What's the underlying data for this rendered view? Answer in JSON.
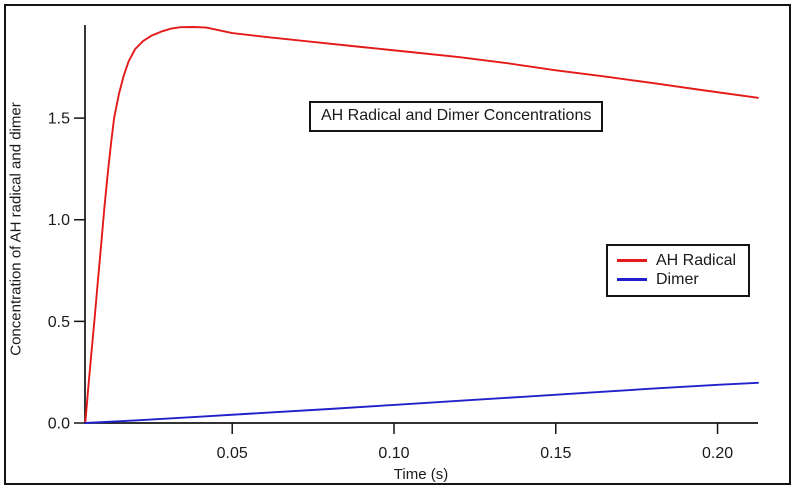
{
  "window": {
    "background": "#ffffff",
    "frame_color": "#141414"
  },
  "chart_data": {
    "type": "line",
    "title": "AH Radical and Dimer Concentrations",
    "xlabel": "Time (s)",
    "ylabel": "Concentration of AH radical and dimer",
    "xlim": [
      0.0045,
      0.2125
    ],
    "ylim": [
      0,
      1.958
    ],
    "xtick_values": [
      0.05,
      0.1,
      0.15,
      0.2
    ],
    "xtick_labels": [
      "0.05",
      "0.10",
      "0.15",
      "0.20"
    ],
    "ytick_values": [
      0.0,
      0.5,
      1.0,
      1.5
    ],
    "ytick_labels": [
      "0.0",
      "0.5",
      "1.0",
      "1.5"
    ],
    "grid": false,
    "legend_position": "middle-right",
    "axis_color": "#141414",
    "text_color": "#1a1a1a",
    "series": [
      {
        "name": "AH Radical",
        "color": "#e41a1a",
        "x": [
          0.0046,
          0.0055,
          0.0065,
          0.0075,
          0.0085,
          0.0095,
          0.0105,
          0.0115,
          0.0125,
          0.0135,
          0.015,
          0.0165,
          0.018,
          0.02,
          0.0225,
          0.025,
          0.028,
          0.031,
          0.034,
          0.038,
          0.042,
          0.05,
          0.06,
          0.075,
          0.09,
          0.105,
          0.12,
          0.135,
          0.15,
          0.165,
          0.18,
          0.195,
          0.2125
        ],
        "y": [
          0.0,
          0.17,
          0.35,
          0.52,
          0.7,
          0.88,
          1.06,
          1.22,
          1.37,
          1.5,
          1.62,
          1.71,
          1.78,
          1.84,
          1.88,
          1.905,
          1.925,
          1.94,
          1.947,
          1.948,
          1.945,
          1.918,
          1.9,
          1.875,
          1.85,
          1.825,
          1.8,
          1.77,
          1.735,
          1.705,
          1.672,
          1.638,
          1.6
        ]
      },
      {
        "name": "Dimer",
        "color": "#2121cc",
        "x": [
          0.0046,
          0.02,
          0.04,
          0.06,
          0.08,
          0.1,
          0.12,
          0.14,
          0.16,
          0.18,
          0.2,
          0.2125
        ],
        "y": [
          0.0,
          0.013,
          0.031,
          0.05,
          0.069,
          0.089,
          0.109,
          0.129,
          0.149,
          0.169,
          0.188,
          0.198
        ]
      }
    ]
  }
}
